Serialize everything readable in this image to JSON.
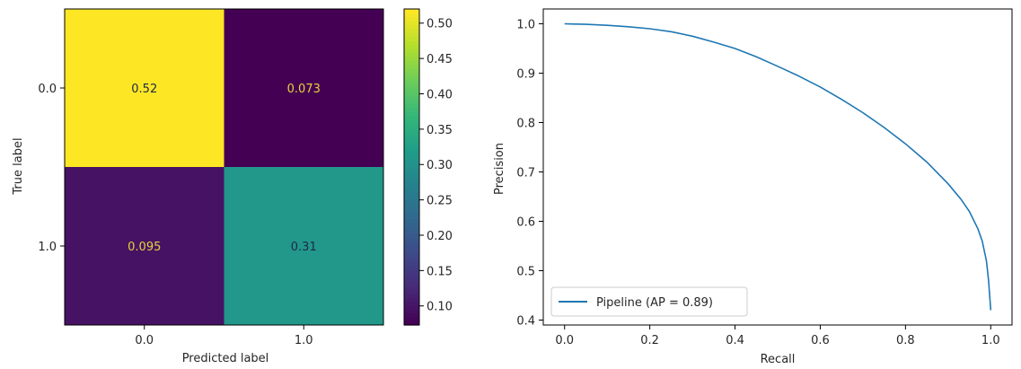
{
  "chart_data": [
    {
      "type": "heatmap",
      "title": "",
      "xlabel": "Predicted label",
      "ylabel": "True label",
      "x_categories": [
        "0.0",
        "1.0"
      ],
      "y_categories": [
        "0.0",
        "1.0"
      ],
      "values": [
        [
          0.52,
          0.073
        ],
        [
          0.095,
          0.31
        ]
      ],
      "value_labels": [
        [
          "0.52",
          "0.073"
        ],
        [
          "0.095",
          "0.31"
        ]
      ],
      "colormap": "viridis",
      "colorbar": {
        "vmin": 0.073,
        "vmax": 0.52,
        "ticks": [
          0.1,
          0.15,
          0.2,
          0.25,
          0.3,
          0.35,
          0.4,
          0.45,
          0.5
        ],
        "tick_labels": [
          "0.10",
          "0.15",
          "0.20",
          "0.25",
          "0.30",
          "0.35",
          "0.40",
          "0.45",
          "0.50"
        ]
      }
    },
    {
      "type": "line",
      "title": "",
      "xlabel": "Recall",
      "ylabel": "Precision",
      "xlim": [
        -0.05,
        1.05
      ],
      "ylim": [
        0.39,
        1.03
      ],
      "xticks": [
        0.0,
        0.2,
        0.4,
        0.6,
        0.8,
        1.0
      ],
      "xtick_labels": [
        "0.0",
        "0.2",
        "0.4",
        "0.6",
        "0.8",
        "1.0"
      ],
      "yticks": [
        0.4,
        0.5,
        0.6,
        0.7,
        0.8,
        0.9,
        1.0
      ],
      "ytick_labels": [
        "0.4",
        "0.5",
        "0.6",
        "0.7",
        "0.8",
        "0.9",
        "1.0"
      ],
      "legend": "lower-left",
      "series": [
        {
          "name": "Pipeline (AP = 0.89)",
          "color": "#1f77b4",
          "x": [
            0.0,
            0.05,
            0.1,
            0.15,
            0.2,
            0.25,
            0.3,
            0.35,
            0.4,
            0.45,
            0.5,
            0.55,
            0.6,
            0.65,
            0.7,
            0.75,
            0.8,
            0.85,
            0.9,
            0.93,
            0.95,
            0.97,
            0.98,
            0.99,
            0.995,
            1.0
          ],
          "y": [
            1.0,
            0.999,
            0.997,
            0.994,
            0.99,
            0.984,
            0.975,
            0.963,
            0.95,
            0.933,
            0.914,
            0.894,
            0.872,
            0.847,
            0.82,
            0.79,
            0.757,
            0.72,
            0.676,
            0.645,
            0.62,
            0.585,
            0.56,
            0.52,
            0.48,
            0.42
          ]
        }
      ]
    }
  ]
}
